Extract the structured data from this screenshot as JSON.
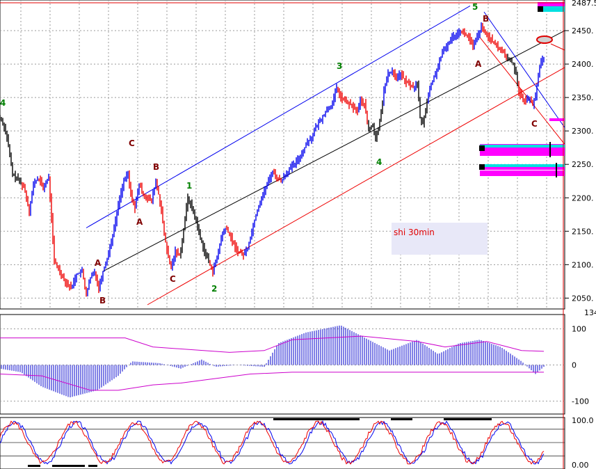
{
  "chart_data": [
    {
      "type": "candlestick",
      "title": "shi 30min",
      "y_ticks": [
        "2450.",
        "2400.",
        "2350.",
        "2300.",
        "2250.",
        "2200.",
        "2150.",
        "2100.",
        "2050."
      ],
      "y_top_label": "2487.5",
      "ylim": [
        2040,
        2487.5
      ],
      "grid": true,
      "colors": {
        "up": "#0000ee",
        "down": "#ee0000",
        "neutral": "#000000",
        "channel_upper": "#0000ee",
        "channel_mid": "#000000",
        "channel_lower": "#ee0000"
      },
      "price_path": [
        [
          0,
          2320
        ],
        [
          5,
          2310
        ],
        [
          10,
          2290
        ],
        [
          18,
          2235
        ],
        [
          28,
          2225
        ],
        [
          35,
          2215
        ],
        [
          42,
          2180
        ],
        [
          48,
          2220
        ],
        [
          55,
          2230
        ],
        [
          62,
          2215
        ],
        [
          70,
          2230
        ],
        [
          74,
          2170
        ],
        [
          78,
          2105
        ],
        [
          86,
          2090
        ],
        [
          94,
          2075
        ],
        [
          102,
          2065
        ],
        [
          110,
          2085
        ],
        [
          118,
          2090
        ],
        [
          124,
          2055
        ],
        [
          130,
          2080
        ],
        [
          136,
          2090
        ],
        [
          142,
          2065
        ],
        [
          148,
          2090
        ],
        [
          154,
          2110
        ],
        [
          160,
          2135
        ],
        [
          166,
          2165
        ],
        [
          172,
          2200
        ],
        [
          178,
          2225
        ],
        [
          184,
          2235
        ],
        [
          188,
          2205
        ],
        [
          194,
          2185
        ],
        [
          200,
          2220
        ],
        [
          206,
          2205
        ],
        [
          212,
          2200
        ],
        [
          218,
          2195
        ],
        [
          224,
          2225
        ],
        [
          228,
          2205
        ],
        [
          232,
          2180
        ],
        [
          236,
          2145
        ],
        [
          242,
          2110
        ],
        [
          246,
          2095
        ],
        [
          252,
          2120
        ],
        [
          258,
          2115
        ],
        [
          262,
          2135
        ],
        [
          266,
          2170
        ],
        [
          270,
          2200
        ],
        [
          276,
          2185
        ],
        [
          282,
          2165
        ],
        [
          288,
          2140
        ],
        [
          294,
          2120
        ],
        [
          300,
          2105
        ],
        [
          306,
          2090
        ],
        [
          312,
          2110
        ],
        [
          318,
          2140
        ],
        [
          324,
          2155
        ],
        [
          330,
          2145
        ],
        [
          336,
          2130
        ],
        [
          342,
          2120
        ],
        [
          350,
          2115
        ],
        [
          356,
          2125
        ],
        [
          362,
          2150
        ],
        [
          368,
          2175
        ],
        [
          374,
          2195
        ],
        [
          380,
          2210
        ],
        [
          386,
          2225
        ],
        [
          392,
          2240
        ],
        [
          398,
          2230
        ],
        [
          404,
          2225
        ],
        [
          410,
          2235
        ],
        [
          418,
          2245
        ],
        [
          424,
          2250
        ],
        [
          430,
          2260
        ],
        [
          436,
          2270
        ],
        [
          442,
          2285
        ],
        [
          448,
          2290
        ],
        [
          454,
          2305
        ],
        [
          460,
          2315
        ],
        [
          466,
          2325
        ],
        [
          472,
          2335
        ],
        [
          478,
          2340
        ],
        [
          484,
          2365
        ],
        [
          490,
          2350
        ],
        [
          496,
          2345
        ],
        [
          502,
          2340
        ],
        [
          508,
          2335
        ],
        [
          514,
          2330
        ],
        [
          518,
          2345
        ],
        [
          524,
          2340
        ],
        [
          530,
          2300
        ],
        [
          536,
          2310
        ],
        [
          540,
          2285
        ],
        [
          544,
          2305
        ],
        [
          548,
          2330
        ],
        [
          552,
          2360
        ],
        [
          558,
          2385
        ],
        [
          564,
          2390
        ],
        [
          570,
          2380
        ],
        [
          576,
          2385
        ],
        [
          582,
          2375
        ],
        [
          588,
          2370
        ],
        [
          594,
          2365
        ],
        [
          600,
          2370
        ],
        [
          604,
          2320
        ],
        [
          608,
          2310
        ],
        [
          614,
          2345
        ],
        [
          620,
          2370
        ],
        [
          626,
          2385
        ],
        [
          632,
          2405
        ],
        [
          638,
          2420
        ],
        [
          644,
          2430
        ],
        [
          650,
          2440
        ],
        [
          656,
          2445
        ],
        [
          662,
          2450
        ],
        [
          668,
          2445
        ],
        [
          674,
          2440
        ],
        [
          680,
          2425
        ],
        [
          686,
          2440
        ],
        [
          692,
          2455
        ],
        [
          698,
          2445
        ],
        [
          704,
          2440
        ],
        [
          710,
          2430
        ],
        [
          716,
          2425
        ],
        [
          722,
          2420
        ],
        [
          728,
          2410
        ],
        [
          734,
          2405
        ],
        [
          738,
          2400
        ],
        [
          742,
          2385
        ],
        [
          746,
          2360
        ],
        [
          750,
          2350
        ],
        [
          756,
          2345
        ],
        [
          762,
          2350
        ],
        [
          766,
          2340
        ],
        [
          770,
          2350
        ],
        [
          774,
          2385
        ],
        [
          778,
          2405
        ],
        [
          782,
          2410
        ]
      ],
      "wave_labels": [
        {
          "text": "4",
          "color": "#008000"
        },
        {
          "text": "C",
          "color": "#800000"
        },
        {
          "text": "B",
          "color": "#800000"
        },
        {
          "text": "A",
          "color": "#800000"
        },
        {
          "text": "A",
          "color": "#800000"
        },
        {
          "text": "B",
          "color": "#800000"
        },
        {
          "text": "C",
          "color": "#800000"
        },
        {
          "text": "1",
          "color": "#008000"
        },
        {
          "text": "2",
          "color": "#008000"
        },
        {
          "text": "3",
          "color": "#008000"
        },
        {
          "text": "4",
          "color": "#008000"
        },
        {
          "text": "5",
          "color": "#008000"
        },
        {
          "text": "B",
          "color": "#800000"
        },
        {
          "text": "A",
          "color": "#800000"
        },
        {
          "text": "C",
          "color": "#800000"
        }
      ]
    },
    {
      "type": "histogram",
      "y_ticks": [
        "100",
        "0",
        "-100"
      ],
      "y_top_label": "134",
      "ylim": [
        -130,
        134
      ],
      "colors": {
        "bars": "#0000cc",
        "bands": "#cc00cc"
      }
    },
    {
      "type": "line",
      "y_ticks": [
        "100.0",
        "0.00"
      ],
      "ylim": [
        0,
        100
      ],
      "colors": {
        "k": "#0000ee",
        "d": "#ee0000"
      }
    }
  ]
}
